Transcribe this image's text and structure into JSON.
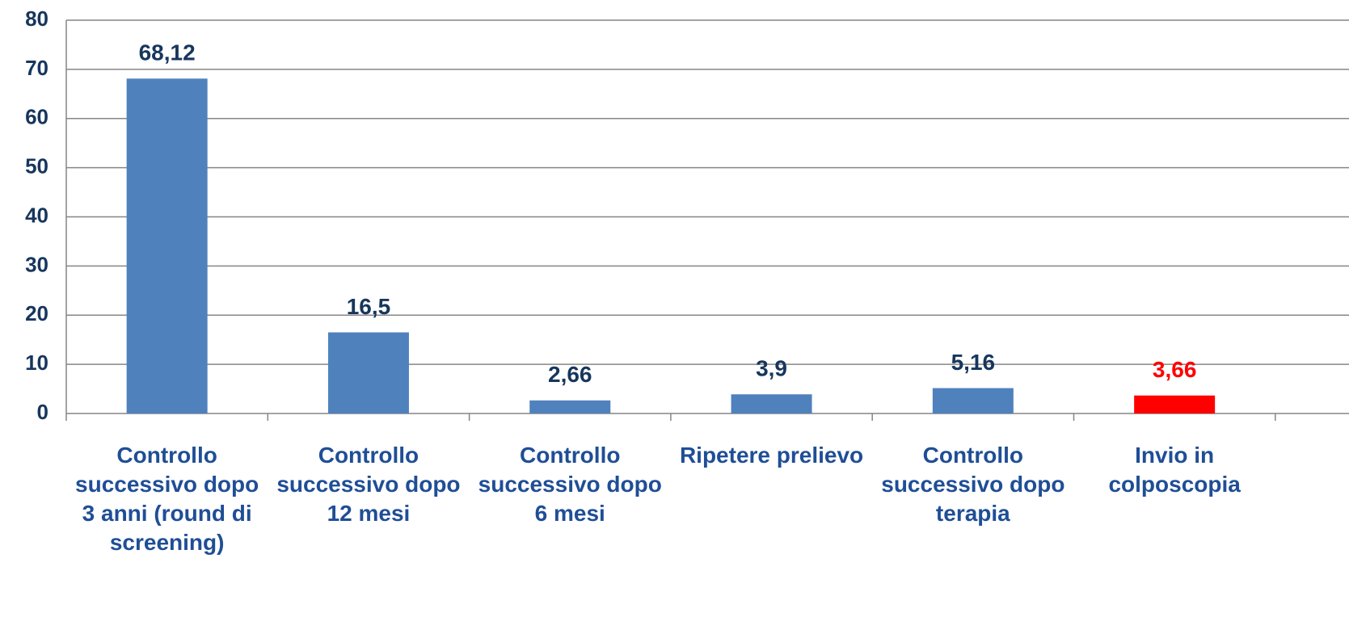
{
  "chart_data": {
    "type": "bar",
    "categories": [
      "Controllo successivo dopo 3 anni (round di screening)",
      "Controllo successivo dopo 12 mesi",
      "Controllo successivo dopo 6 mesi",
      "Ripetere prelievo",
      "Controllo successivo dopo terapia",
      "Invio in colposcopia"
    ],
    "values": [
      68.12,
      16.5,
      2.66,
      3.9,
      5.16,
      3.66
    ],
    "value_labels": [
      "68,12",
      "16,5",
      "2,66",
      "3,9",
      "5,16",
      "3,66"
    ],
    "colors": [
      "#4f81bd",
      "#4f81bd",
      "#4f81bd",
      "#4f81bd",
      "#4f81bd",
      "#ff0000"
    ],
    "value_label_colors": [
      "#17365d",
      "#17365d",
      "#17365d",
      "#17365d",
      "#17365d",
      "#ff0000"
    ],
    "ylim": [
      0,
      80
    ],
    "yticks": [
      0,
      10,
      20,
      30,
      40,
      50,
      60,
      70,
      80
    ],
    "grid": true
  }
}
